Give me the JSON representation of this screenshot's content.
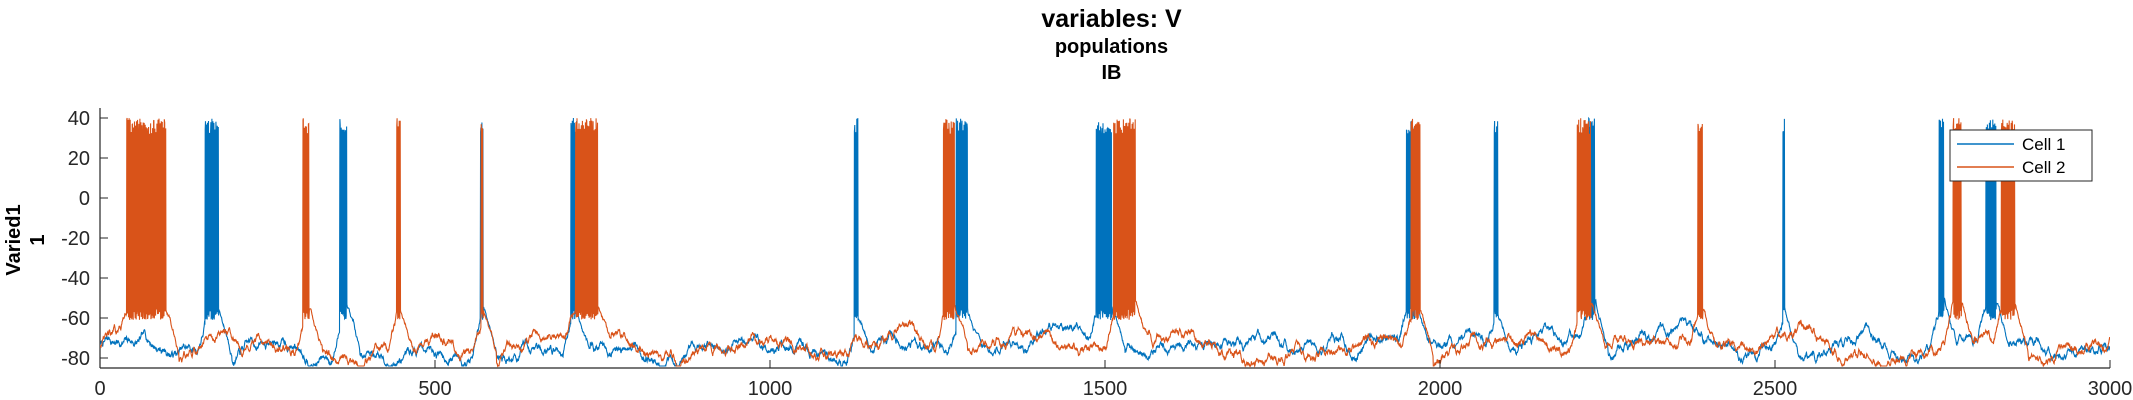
{
  "titles": {
    "main": "variables: V",
    "sub1": "populations",
    "sub2": "IB"
  },
  "chart_data": {
    "type": "line",
    "xlim": [
      0,
      3000
    ],
    "ylim": [
      -85,
      45
    ],
    "xticks": [
      0,
      500,
      1000,
      1500,
      2000,
      2500,
      3000
    ],
    "yticks": [
      -80,
      -60,
      -40,
      -20,
      0,
      20,
      40
    ],
    "ylabel_line1": "Varied1",
    "ylabel_line2": "1",
    "legend_placement": "top-right",
    "colors": {
      "cell1": "#0072BD",
      "cell2": "#D95319",
      "axes": "#262626"
    },
    "baseline_mV": -75,
    "spike_peak_mV": 40,
    "burst_trough_mV": -55,
    "series": [
      {
        "name": "Cell 1",
        "color": "#0072BD",
        "bursts_ms": [
          [
            157,
            177
          ],
          [
            358,
            368
          ],
          [
            568,
            572
          ],
          [
            703,
            712
          ],
          [
            1126,
            1131
          ],
          [
            1278,
            1295
          ],
          [
            1487,
            1510
          ],
          [
            1950,
            1962
          ],
          [
            2081,
            2086
          ],
          [
            2222,
            2231
          ],
          [
            2512,
            2514
          ],
          [
            2745,
            2752
          ],
          [
            2815,
            2830
          ]
        ]
      },
      {
        "name": "Cell 2",
        "color": "#D95319",
        "bursts_ms": [
          [
            40,
            98
          ],
          [
            303,
            312
          ],
          [
            443,
            448
          ],
          [
            569,
            572
          ],
          [
            710,
            743
          ],
          [
            1259,
            1275
          ],
          [
            1513,
            1545
          ],
          [
            1957,
            1970
          ],
          [
            2205,
            2225
          ],
          [
            2385,
            2392
          ],
          [
            2766,
            2778
          ],
          [
            2838,
            2858
          ]
        ]
      }
    ]
  }
}
